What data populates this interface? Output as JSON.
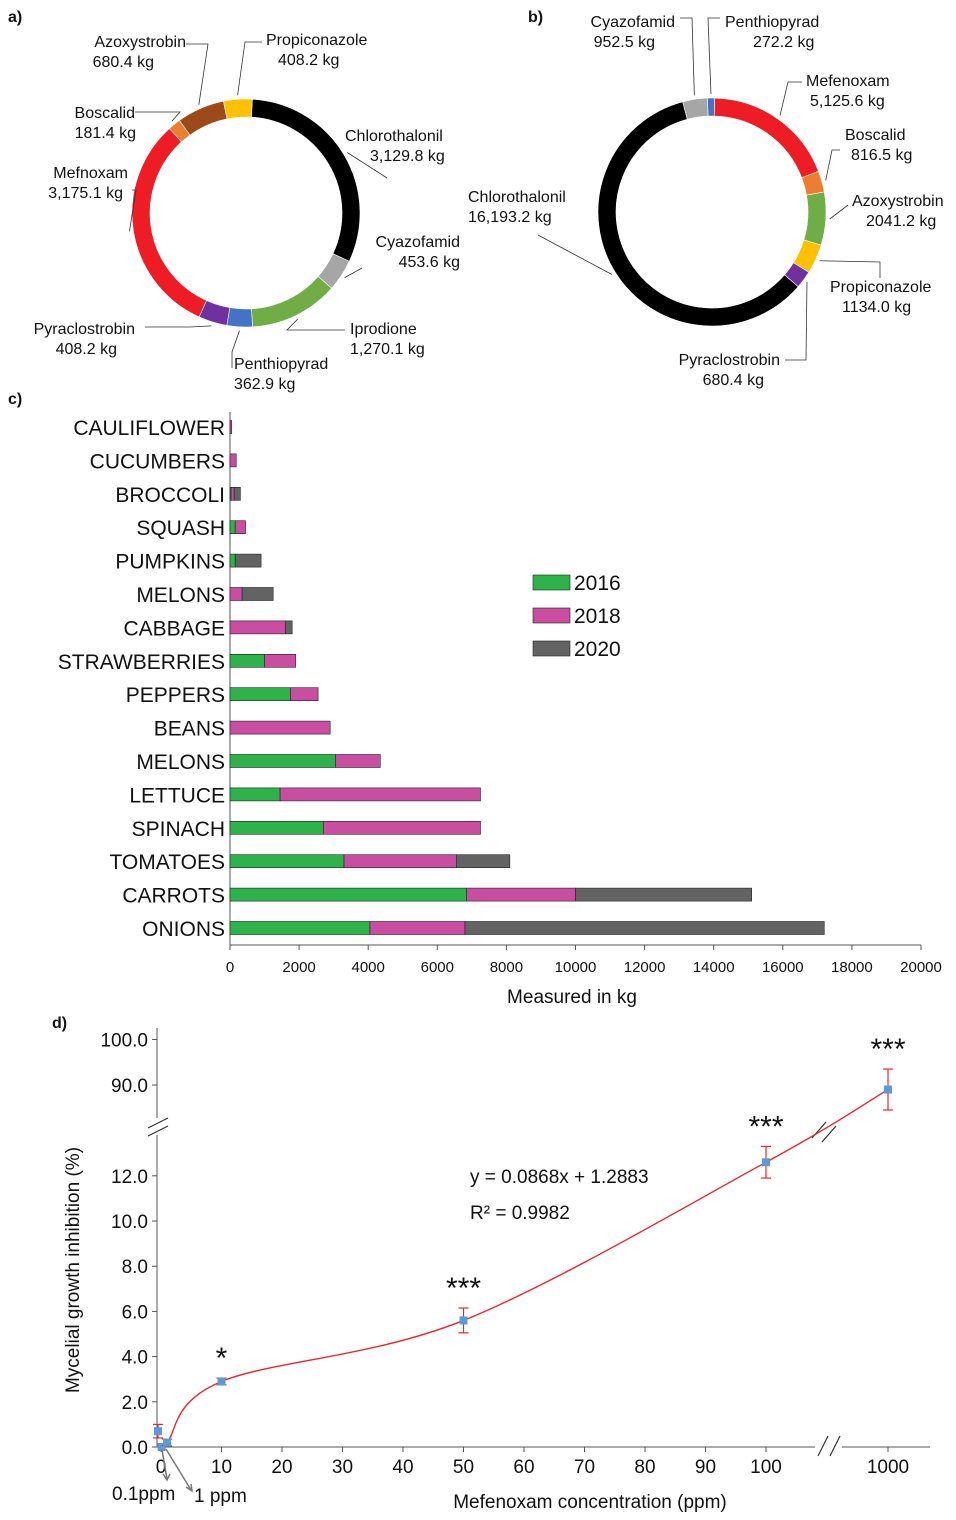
{
  "panels": {
    "a": "a)",
    "b": "b)",
    "c": "c)",
    "d": "d)"
  },
  "chart_data": [
    {
      "panel": "a",
      "type": "pie",
      "slices": [
        {
          "label": "Chlorothalonil",
          "value_text": "3,129.8 kg",
          "value": 3129.8,
          "color": "#000000"
        },
        {
          "label": "Cyazofamid",
          "value_text": "453.6 kg",
          "value": 453.6,
          "color": "#a6a6a6"
        },
        {
          "label": "Iprodione",
          "value_text": "1,270.1 kg",
          "value": 1270.1,
          "color": "#70ad47"
        },
        {
          "label": "Penthiopyrad",
          "value_text": "362.9 kg",
          "value": 362.9,
          "color": "#4472c4"
        },
        {
          "label": "Pyraclostrobin",
          "value_text": "408.2 kg",
          "value": 408.2,
          "color": "#7030a0"
        },
        {
          "label": "Mefnoxam",
          "value_text": "3,175.1 kg",
          "value": 3175.1,
          "color": "#ee1c25"
        },
        {
          "label": "Boscalid",
          "value_text": "181.4 kg",
          "value": 181.4,
          "color": "#ed7d31"
        },
        {
          "label": "Azoxystrobin",
          "value_text": "680.4 kg",
          "value": 680.4,
          "color": "#9c4a1a"
        },
        {
          "label": "Propiconazole",
          "value_text": "408.2 kg",
          "value": 408.2,
          "color": "#ffc000"
        }
      ]
    },
    {
      "panel": "b",
      "type": "pie",
      "slices": [
        {
          "label": "Mefenoxam",
          "value_text": "5,125.6 kg",
          "value": 5125.6,
          "color": "#ee1c25"
        },
        {
          "label": "Boscalid",
          "value_text": "816.5 kg",
          "value": 816.5,
          "color": "#ed7d31"
        },
        {
          "label": "Azoxystrobin",
          "value_text": "2041.2 kg",
          "value": 2041.2,
          "color": "#70ad47"
        },
        {
          "label": "Propiconazole",
          "value_text": "1134.0 kg",
          "value": 1134.0,
          "color": "#ffc000"
        },
        {
          "label": "Pyraclostrobin",
          "value_text": "680.4 kg",
          "value": 680.4,
          "color": "#7030a0"
        },
        {
          "label": "Chlorothalonil",
          "value_text": "16,193.2 kg",
          "value": 16193.2,
          "color": "#000000"
        },
        {
          "label": "Cyazofamid",
          "value_text": "952.5 kg",
          "value": 952.5,
          "color": "#a6a6a6"
        },
        {
          "label": "Penthiopyrad",
          "value_text": "272.2 kg",
          "value": 272.2,
          "color": "#4472c4"
        }
      ]
    },
    {
      "panel": "c",
      "type": "bar",
      "orientation": "horizontal",
      "stacked": true,
      "categories": [
        "CAULIFLOWER",
        "CUCUMBERS",
        "BROCCOLI",
        "SQUASH",
        "PUMPKINS",
        "MELONS",
        "CABBAGE",
        "STRAWBERRIES",
        "PEPPERS",
        "BEANS",
        "MELONS",
        "LETTUCE",
        "SPINACH",
        "TOMATOES",
        "CARROTS",
        "ONIONS"
      ],
      "series": [
        {
          "name": "2016",
          "color": "#2db34a",
          "values": [
            0,
            0,
            30,
            150,
            150,
            0,
            0,
            1000,
            1750,
            0,
            3050,
            1450,
            2700,
            3300,
            6850,
            4050
          ]
        },
        {
          "name": "2018",
          "color": "#c94ea1",
          "values": [
            50,
            180,
            90,
            300,
            0,
            350,
            1600,
            900,
            800,
            2900,
            1300,
            5800,
            4550,
            3250,
            3150,
            2750
          ]
        },
        {
          "name": "2020",
          "color": "#636363",
          "values": [
            0,
            0,
            180,
            0,
            750,
            900,
            200,
            0,
            0,
            0,
            0,
            0,
            0,
            1550,
            5100,
            10400
          ]
        }
      ],
      "xlabel": "Measured in kg",
      "xlim": [
        0,
        20000
      ],
      "xticks": [
        "0",
        "2000",
        "4000",
        "6000",
        "8000",
        "10000",
        "12000",
        "14000",
        "16000",
        "18000",
        "20000"
      ],
      "legend": "right"
    },
    {
      "panel": "d",
      "type": "line",
      "xlabel": "Mefenoxam concentration (ppm)",
      "ylabel": "Mycelial growth inhibition (%)",
      "xticks": [
        "0",
        "10",
        "20",
        "30",
        "40",
        "50",
        "60",
        "70",
        "80",
        "90",
        "100",
        "1000"
      ],
      "yticks": [
        "0.0",
        "2.0",
        "4.0",
        "6.0",
        "8.0",
        "10.0",
        "12.0",
        "90.0",
        "100.0"
      ],
      "axis_breaks": true,
      "points": [
        {
          "x": 0,
          "y": 0.7,
          "err": 0.3,
          "sig": ""
        },
        {
          "x": 0.1,
          "y": 0.0,
          "err": 0.1,
          "sig": ""
        },
        {
          "x": 1,
          "y": 0.2,
          "err": 0.15,
          "sig": ""
        },
        {
          "x": 10,
          "y": 2.9,
          "err": 0.15,
          "sig": "*"
        },
        {
          "x": 50,
          "y": 5.6,
          "err": 0.55,
          "sig": "***"
        },
        {
          "x": 100,
          "y": 12.6,
          "err": 0.7,
          "sig": "***"
        },
        {
          "x": 1000,
          "y": 89.0,
          "err": 4.5,
          "sig": "***"
        }
      ],
      "annotations": {
        "label_01": "0.1ppm",
        "label_1": "1 ppm"
      },
      "equation": "y = 0.0868x + 1.2883",
      "r2": "R² = 0.9982"
    }
  ]
}
